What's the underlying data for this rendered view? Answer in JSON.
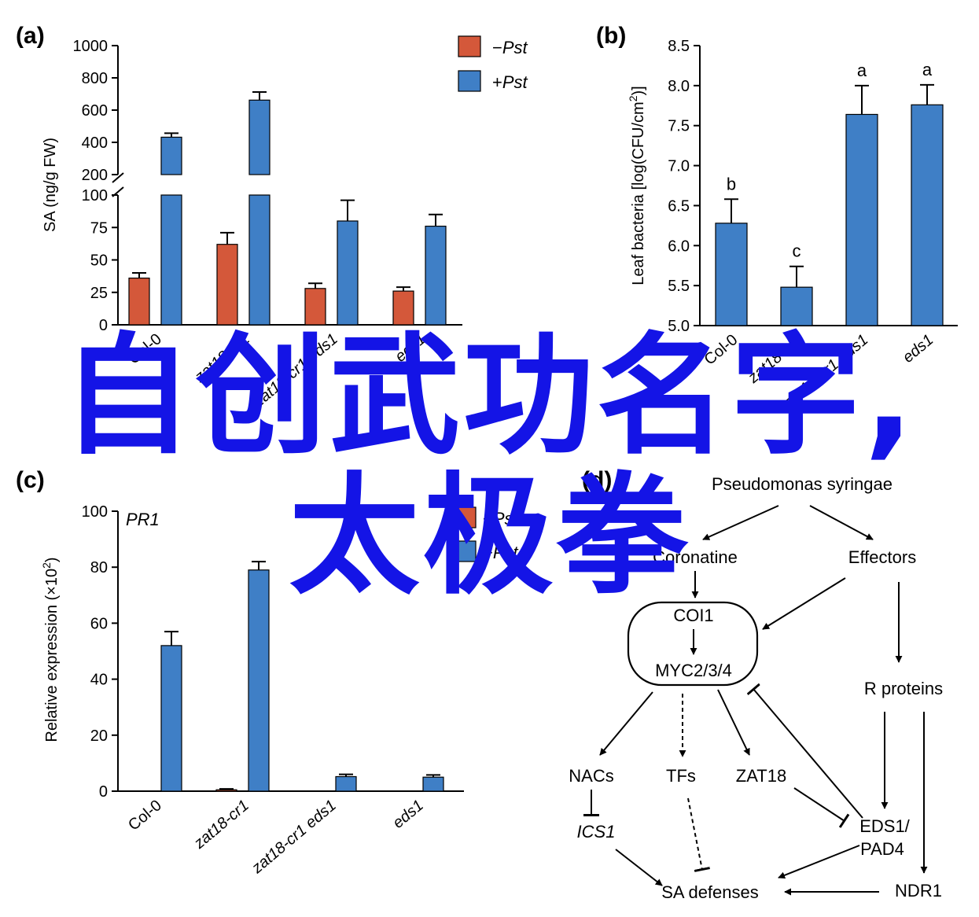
{
  "colors": {
    "minus_pst": "#d4583a",
    "plus_pst": "#3f7fc6",
    "watermark": "#1414e6"
  },
  "panels": {
    "a": {
      "tag": "a"
    },
    "b": {
      "tag": "b"
    },
    "c": {
      "tag": "c",
      "gene": "PR1"
    },
    "d": {
      "tag": "d"
    }
  },
  "legend": {
    "minus_sign": "−",
    "plus_sign": "+",
    "label": "Pst"
  },
  "chart_data": [
    {
      "id": "a",
      "type": "bar",
      "ylabel": "SA (ng/g FW)",
      "categories": [
        "Col-0",
        "zat18-cr1",
        "zat18-cr1 eds1",
        "eds1"
      ],
      "axis_break": true,
      "ylim_lower": [
        0,
        100
      ],
      "yticks_lower": [
        "0",
        "25",
        "50",
        "75",
        "100"
      ],
      "ylim_upper": [
        200,
        1000
      ],
      "yticks_upper": [
        "200",
        "400",
        "600",
        "800",
        "1000"
      ],
      "series": [
        {
          "name": "−Pst",
          "values": [
            36,
            62,
            28,
            26
          ],
          "errors": [
            4,
            9,
            4,
            3
          ]
        },
        {
          "name": "+Pst",
          "values": [
            432,
            662,
            80,
            76
          ],
          "errors": [
            25,
            50,
            16,
            9
          ]
        }
      ]
    },
    {
      "id": "b",
      "type": "bar",
      "ylabel": "Leaf bacteria [log(CFU/cm2)]",
      "categories": [
        "Col-0",
        "zat18-cr1",
        "zat18-cr1 eds1",
        "eds1"
      ],
      "ylim": [
        5.0,
        8.5
      ],
      "yticks": [
        "5.0",
        "5.5",
        "6.0",
        "6.5",
        "7.0",
        "7.5",
        "8.0",
        "8.5"
      ],
      "series": [
        {
          "name": "+Pst",
          "values": [
            6.28,
            5.48,
            7.64,
            7.76
          ],
          "errors": [
            0.3,
            0.26,
            0.36,
            0.25
          ]
        }
      ],
      "letters": [
        "b",
        "c",
        "a",
        "a"
      ]
    },
    {
      "id": "c",
      "type": "bar",
      "ylabel": "Relative expression (×102)",
      "categories": [
        "Col-0",
        "zat18-cr1",
        "zat18-cr1 eds1",
        "eds1"
      ],
      "ylim": [
        0,
        100
      ],
      "yticks": [
        "0",
        "20",
        "40",
        "60",
        "80",
        "100"
      ],
      "series": [
        {
          "name": "−Pst",
          "values": [
            0,
            0.5,
            0,
            0
          ],
          "errors": [
            0,
            0.3,
            0,
            0
          ]
        },
        {
          "name": "+Pst",
          "values": [
            52,
            79,
            5.2,
            5
          ],
          "errors": [
            5,
            3,
            0.8,
            0.8
          ]
        }
      ]
    }
  ],
  "diagram": {
    "pathogen": "Pseudomonas syringae",
    "coronatine": "Coronatine",
    "effectors": "Effectors",
    "coi1": "COI1",
    "myc": "MYC2/3/4",
    "r_proteins": "R proteins",
    "nacs": "NACs",
    "tfs": "TFs",
    "zat18": "ZAT18",
    "ics1": "ICS1",
    "eds1_l1": "EDS1/",
    "eds1_l2": "PAD4",
    "sa_defenses": "SA defenses",
    "ndr1": "NDR1"
  },
  "overlay": {
    "line1": "自创武功名字,",
    "line2": "太极拳"
  }
}
